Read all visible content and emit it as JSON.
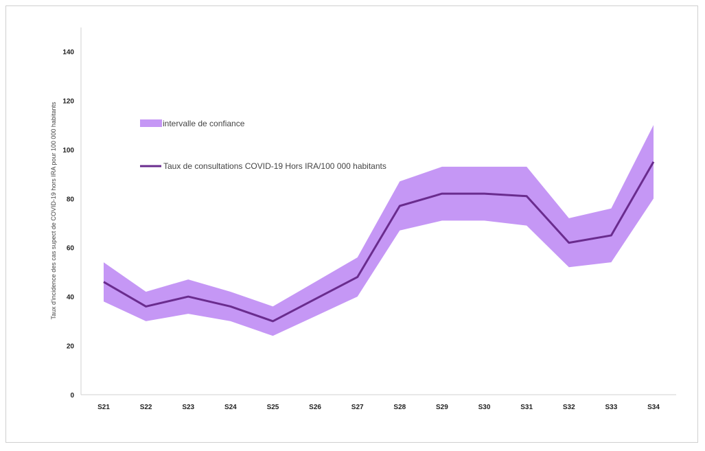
{
  "chart_data": {
    "type": "line",
    "title": "",
    "xlabel": "",
    "ylabel": "Taux d'incidence des cas supect de COVID-19  hors  IRA  pour 100 000 habitants",
    "ylim": [
      0,
      150
    ],
    "yticks": [
      0,
      20,
      40,
      60,
      80,
      100,
      120,
      140
    ],
    "categories": [
      "S21",
      "S22",
      "S23",
      "S24",
      "S25",
      "S26",
      "S27",
      "S28",
      "S29",
      "S30",
      "S31",
      "S32",
      "S33",
      "S34"
    ],
    "series": [
      {
        "name": "Taux de consultations COVID-19 Hors IRA/100 000 habitants",
        "kind": "line",
        "color": "#6a2c8e",
        "values": [
          46,
          36,
          40,
          36,
          30,
          39,
          48,
          77,
          82,
          82,
          81,
          62,
          65,
          95
        ]
      },
      {
        "name": "intervalle de confiance",
        "kind": "band",
        "color": "#c597f5",
        "lower": [
          38,
          30,
          33,
          30,
          24,
          32,
          40,
          67,
          71,
          71,
          69,
          52,
          54,
          80
        ],
        "upper": [
          54,
          42,
          47,
          42,
          36,
          46,
          56,
          87,
          93,
          93,
          93,
          72,
          76,
          110
        ]
      }
    ],
    "grid": false,
    "legend": "top-left"
  }
}
